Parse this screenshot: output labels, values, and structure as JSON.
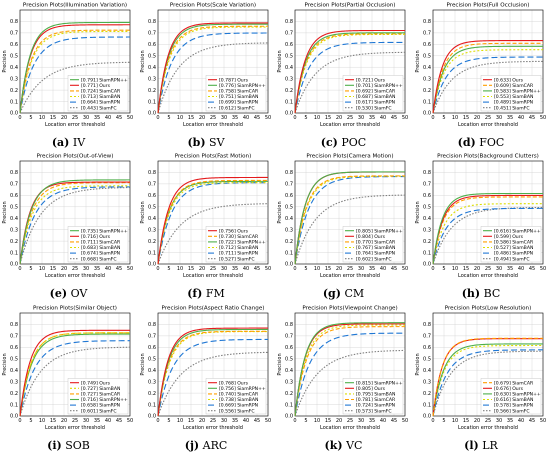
{
  "common": {
    "xlabel": "Location error threshold",
    "ylabel": "Precision",
    "xticks": [
      0,
      5,
      10,
      15,
      20,
      25,
      30,
      35,
      40,
      45,
      50
    ],
    "yticks": [
      0.0,
      0.1,
      0.2,
      0.3,
      0.4,
      0.5,
      0.6,
      0.7,
      0.8
    ],
    "xlim": [
      0,
      50
    ],
    "ylim": [
      0,
      0.9
    ]
  },
  "styles": {
    "Ours": {
      "color": "#e41a1c",
      "dash": ""
    },
    "SiamRPN++": {
      "color": "#4daf4a",
      "dash": ""
    },
    "SiamCAR": {
      "color": "#ff9f00",
      "dash": "4,2"
    },
    "SiamBAN": {
      "color": "#dddd00",
      "dash": "2,2"
    },
    "SiamRPN": {
      "color": "#1f77d4",
      "dash": "6,3"
    },
    "SiamFC": {
      "color": "#808080",
      "dash": "1.5,1.5"
    }
  },
  "chart_data": [
    {
      "type": "line",
      "title": "Precision Plots(Illumination Variation)",
      "caption_letter": "(a)",
      "caption_text": "IV",
      "series": [
        {
          "name": "SiamRPN++",
          "label": "[0.791] SiamRPN++",
          "final": 0.791,
          "k": 0.22
        },
        {
          "name": "Ours",
          "label": "[0.771] Ours",
          "final": 0.771,
          "k": 0.22
        },
        {
          "name": "SiamCAR",
          "label": "[0.724] SiamCAR",
          "final": 0.724,
          "k": 0.2
        },
        {
          "name": "SiamBAN",
          "label": "[0.713] SiamBAN",
          "final": 0.713,
          "k": 0.19
        },
        {
          "name": "SiamRPN",
          "label": "[0.664] SiamRPN",
          "final": 0.664,
          "k": 0.16
        },
        {
          "name": "SiamFC",
          "label": "[0.443] SiamFC",
          "final": 0.443,
          "k": 0.1
        }
      ]
    },
    {
      "type": "line",
      "title": "Precision Plots(Scale Variation)",
      "caption_letter": "(b)",
      "caption_text": "SV",
      "series": [
        {
          "name": "Ours",
          "label": "[0.787] Ours",
          "final": 0.787,
          "k": 0.22
        },
        {
          "name": "SiamRPN++",
          "label": "[0.776] SiamRPN++",
          "final": 0.776,
          "k": 0.21
        },
        {
          "name": "SiamCAR",
          "label": "[0.758] SiamCAR",
          "final": 0.758,
          "k": 0.2
        },
        {
          "name": "SiamBAN",
          "label": "[0.751] SiamBAN",
          "final": 0.751,
          "k": 0.19
        },
        {
          "name": "SiamRPN",
          "label": "[0.699] SiamRPN",
          "final": 0.699,
          "k": 0.16
        },
        {
          "name": "SiamFC",
          "label": "[0.612] SiamFC",
          "final": 0.612,
          "k": 0.11
        }
      ]
    },
    {
      "type": "line",
      "title": "Precision Plots(Partial Occlusion)",
      "caption_letter": "(c)",
      "caption_text": "POC",
      "series": [
        {
          "name": "Ours",
          "label": "[0.721] Ours",
          "final": 0.721,
          "k": 0.22
        },
        {
          "name": "SiamRPN++",
          "label": "[0.701] SiamRPN++",
          "final": 0.701,
          "k": 0.21
        },
        {
          "name": "SiamCAR",
          "label": "[0.692] SiamCAR",
          "final": 0.692,
          "k": 0.2
        },
        {
          "name": "SiamBAN",
          "label": "[0.687] SiamBAN",
          "final": 0.687,
          "k": 0.19
        },
        {
          "name": "SiamRPN",
          "label": "[0.617] SiamRPN",
          "final": 0.617,
          "k": 0.16
        },
        {
          "name": "SiamFC",
          "label": "[0.530] SiamFC",
          "final": 0.53,
          "k": 0.11
        }
      ]
    },
    {
      "type": "line",
      "title": "Precision Plots(Full Occlusion)",
      "caption_letter": "(d)",
      "caption_text": "FOC",
      "series": [
        {
          "name": "Ours",
          "label": "[0.633] Ours",
          "final": 0.633,
          "k": 0.24
        },
        {
          "name": "SiamCAR",
          "label": "[0.609] SiamCAR",
          "final": 0.609,
          "k": 0.22
        },
        {
          "name": "SiamRPN++",
          "label": "[0.583] SiamRPN++",
          "final": 0.583,
          "k": 0.21
        },
        {
          "name": "SiamBAN",
          "label": "[0.553] SiamBAN",
          "final": 0.553,
          "k": 0.2
        },
        {
          "name": "SiamRPN",
          "label": "[0.489] SiamRPN",
          "final": 0.489,
          "k": 0.17
        },
        {
          "name": "SiamFC",
          "label": "[0.451] SiamFC",
          "final": 0.451,
          "k": 0.12
        }
      ]
    },
    {
      "type": "line",
      "title": "Precision Plots(Out-of-View)",
      "caption_letter": "(e)",
      "caption_text": "OV",
      "series": [
        {
          "name": "SiamRPN++",
          "label": "[0.735] SiamRPN++",
          "final": 0.735,
          "k": 0.2
        },
        {
          "name": "Ours",
          "label": "[0.716] Ours",
          "final": 0.716,
          "k": 0.22
        },
        {
          "name": "SiamCAR",
          "label": "[0.711] SiamCAR",
          "final": 0.711,
          "k": 0.19
        },
        {
          "name": "SiamBAN",
          "label": "[0.683] SiamBAN",
          "final": 0.683,
          "k": 0.18
        },
        {
          "name": "SiamRPN",
          "label": "[0.674] SiamRPN",
          "final": 0.674,
          "k": 0.15
        },
        {
          "name": "SiamFC",
          "label": "[0.668] SiamFC",
          "final": 0.668,
          "k": 0.11
        }
      ]
    },
    {
      "type": "line",
      "title": "Precision Plots(Fast Motion)",
      "caption_letter": "(f)",
      "caption_text": "FM",
      "series": [
        {
          "name": "Ours",
          "label": "[0.756] Ours",
          "final": 0.756,
          "k": 0.21
        },
        {
          "name": "SiamCAR",
          "label": "[0.730] SiamCAR",
          "final": 0.73,
          "k": 0.2
        },
        {
          "name": "SiamRPN++",
          "label": "[0.722] SiamRPN++",
          "final": 0.722,
          "k": 0.2
        },
        {
          "name": "SiamBAN",
          "label": "[0.712] SiamBAN",
          "final": 0.712,
          "k": 0.19
        },
        {
          "name": "SiamRPN",
          "label": "[0.711] SiamRPN",
          "final": 0.711,
          "k": 0.16
        },
        {
          "name": "SiamFC",
          "label": "[0.527] SiamFC",
          "final": 0.527,
          "k": 0.1
        }
      ]
    },
    {
      "type": "line",
      "title": "Precision Plots(Camera Motion)",
      "caption_letter": "(g)",
      "caption_text": "CM",
      "series": [
        {
          "name": "SiamRPN++",
          "label": "[0.805] SiamRPN++",
          "final": 0.805,
          "k": 0.22
        },
        {
          "name": "Ours",
          "label": "[0.804] Ours",
          "final": 0.804,
          "k": 0.22
        },
        {
          "name": "SiamCAR",
          "label": "[0.770] SiamCAR",
          "final": 0.77,
          "k": 0.2
        },
        {
          "name": "SiamBAN",
          "label": "[0.767] SiamBAN",
          "final": 0.767,
          "k": 0.19
        },
        {
          "name": "SiamRPN",
          "label": "[0.764] SiamRPN",
          "final": 0.764,
          "k": 0.16
        },
        {
          "name": "SiamFC",
          "label": "[0.602] SiamFC",
          "final": 0.602,
          "k": 0.11
        }
      ]
    },
    {
      "type": "line",
      "title": "Precision Plots(Background Clutters)",
      "caption_letter": "(h)",
      "caption_text": "BC",
      "series": [
        {
          "name": "SiamRPN++",
          "label": "[0.616] SiamRPN++",
          "final": 0.616,
          "k": 0.24
        },
        {
          "name": "Ours",
          "label": "[0.599] Ours",
          "final": 0.599,
          "k": 0.23
        },
        {
          "name": "SiamCAR",
          "label": "[0.586] SiamCAR",
          "final": 0.586,
          "k": 0.22
        },
        {
          "name": "SiamBAN",
          "label": "[0.527] SiamBAN",
          "final": 0.527,
          "k": 0.2
        },
        {
          "name": "SiamRPN",
          "label": "[0.486] SiamRPN",
          "final": 0.486,
          "k": 0.17
        },
        {
          "name": "SiamFC",
          "label": "[0.494] SiamFC",
          "final": 0.494,
          "k": 0.12
        }
      ]
    },
    {
      "type": "line",
      "title": "Precision Plots(Similar Object)",
      "caption_letter": "(i)",
      "caption_text": "SOB",
      "series": [
        {
          "name": "Ours",
          "label": "[0.749] Ours",
          "final": 0.749,
          "k": 0.22
        },
        {
          "name": "SiamBAN",
          "label": "[0.727] SiamBAN",
          "final": 0.727,
          "k": 0.2
        },
        {
          "name": "SiamCAR",
          "label": "[0.727] SiamCAR",
          "final": 0.727,
          "k": 0.2
        },
        {
          "name": "SiamRPN++",
          "label": "[0.716] SiamRPN++",
          "final": 0.716,
          "k": 0.19
        },
        {
          "name": "SiamRPN",
          "label": "[0.658] SiamRPN",
          "final": 0.658,
          "k": 0.15
        },
        {
          "name": "SiamFC",
          "label": "[0.601] SiamFC",
          "final": 0.601,
          "k": 0.11
        }
      ]
    },
    {
      "type": "line",
      "title": "Precision Plots(Aspect Ratio Change)",
      "caption_letter": "(j)",
      "caption_text": "ARC",
      "series": [
        {
          "name": "Ours",
          "label": "[0.768] Ours",
          "final": 0.768,
          "k": 0.22
        },
        {
          "name": "SiamRPN++",
          "label": "[0.756] SiamRPN++",
          "final": 0.756,
          "k": 0.21
        },
        {
          "name": "SiamCAR",
          "label": "[0.740] SiamCAR",
          "final": 0.74,
          "k": 0.2
        },
        {
          "name": "SiamBAN",
          "label": "[0.738] SiamBAN",
          "final": 0.738,
          "k": 0.19
        },
        {
          "name": "SiamRPN",
          "label": "[0.669] SiamRPN",
          "final": 0.669,
          "k": 0.15
        },
        {
          "name": "SiamFC",
          "label": "[0.556] SiamFC",
          "final": 0.556,
          "k": 0.1
        }
      ]
    },
    {
      "type": "line",
      "title": "Precision Plots(Viewpoint Change)",
      "caption_letter": "(k)",
      "caption_text": "VC",
      "series": [
        {
          "name": "SiamRPN++",
          "label": "[0.815] SiamRPN++",
          "final": 0.815,
          "k": 0.22
        },
        {
          "name": "Ours",
          "label": "[0.805] Ours",
          "final": 0.805,
          "k": 0.22
        },
        {
          "name": "SiamBAN",
          "label": "[0.795] SiamBAN",
          "final": 0.795,
          "k": 0.2
        },
        {
          "name": "SiamCAR",
          "label": "[0.781] SiamCAR",
          "final": 0.781,
          "k": 0.19
        },
        {
          "name": "SiamRPN",
          "label": "[0.724] SiamRPN",
          "final": 0.724,
          "k": 0.15
        },
        {
          "name": "SiamFC",
          "label": "[0.573] SiamFC",
          "final": 0.573,
          "k": 0.1
        }
      ]
    },
    {
      "type": "line",
      "title": "Precision Plots(Low Resolution)",
      "caption_letter": "(l)",
      "caption_text": "LR",
      "series": [
        {
          "name": "SiamCAR",
          "label": "[0.679] SiamCAR",
          "final": 0.679,
          "k": 0.24
        },
        {
          "name": "Ours",
          "label": "[0.676] Ours",
          "final": 0.676,
          "k": 0.24
        },
        {
          "name": "SiamRPN++",
          "label": "[0.630] SiamRPN++",
          "final": 0.63,
          "k": 0.21
        },
        {
          "name": "SiamBAN",
          "label": "[0.616] SiamBAN",
          "final": 0.616,
          "k": 0.2
        },
        {
          "name": "SiamRPN",
          "label": "[0.578] SiamRPN",
          "final": 0.578,
          "k": 0.16
        },
        {
          "name": "SiamFC",
          "label": "[0.566] SiamFC",
          "final": 0.566,
          "k": 0.13
        }
      ]
    }
  ]
}
